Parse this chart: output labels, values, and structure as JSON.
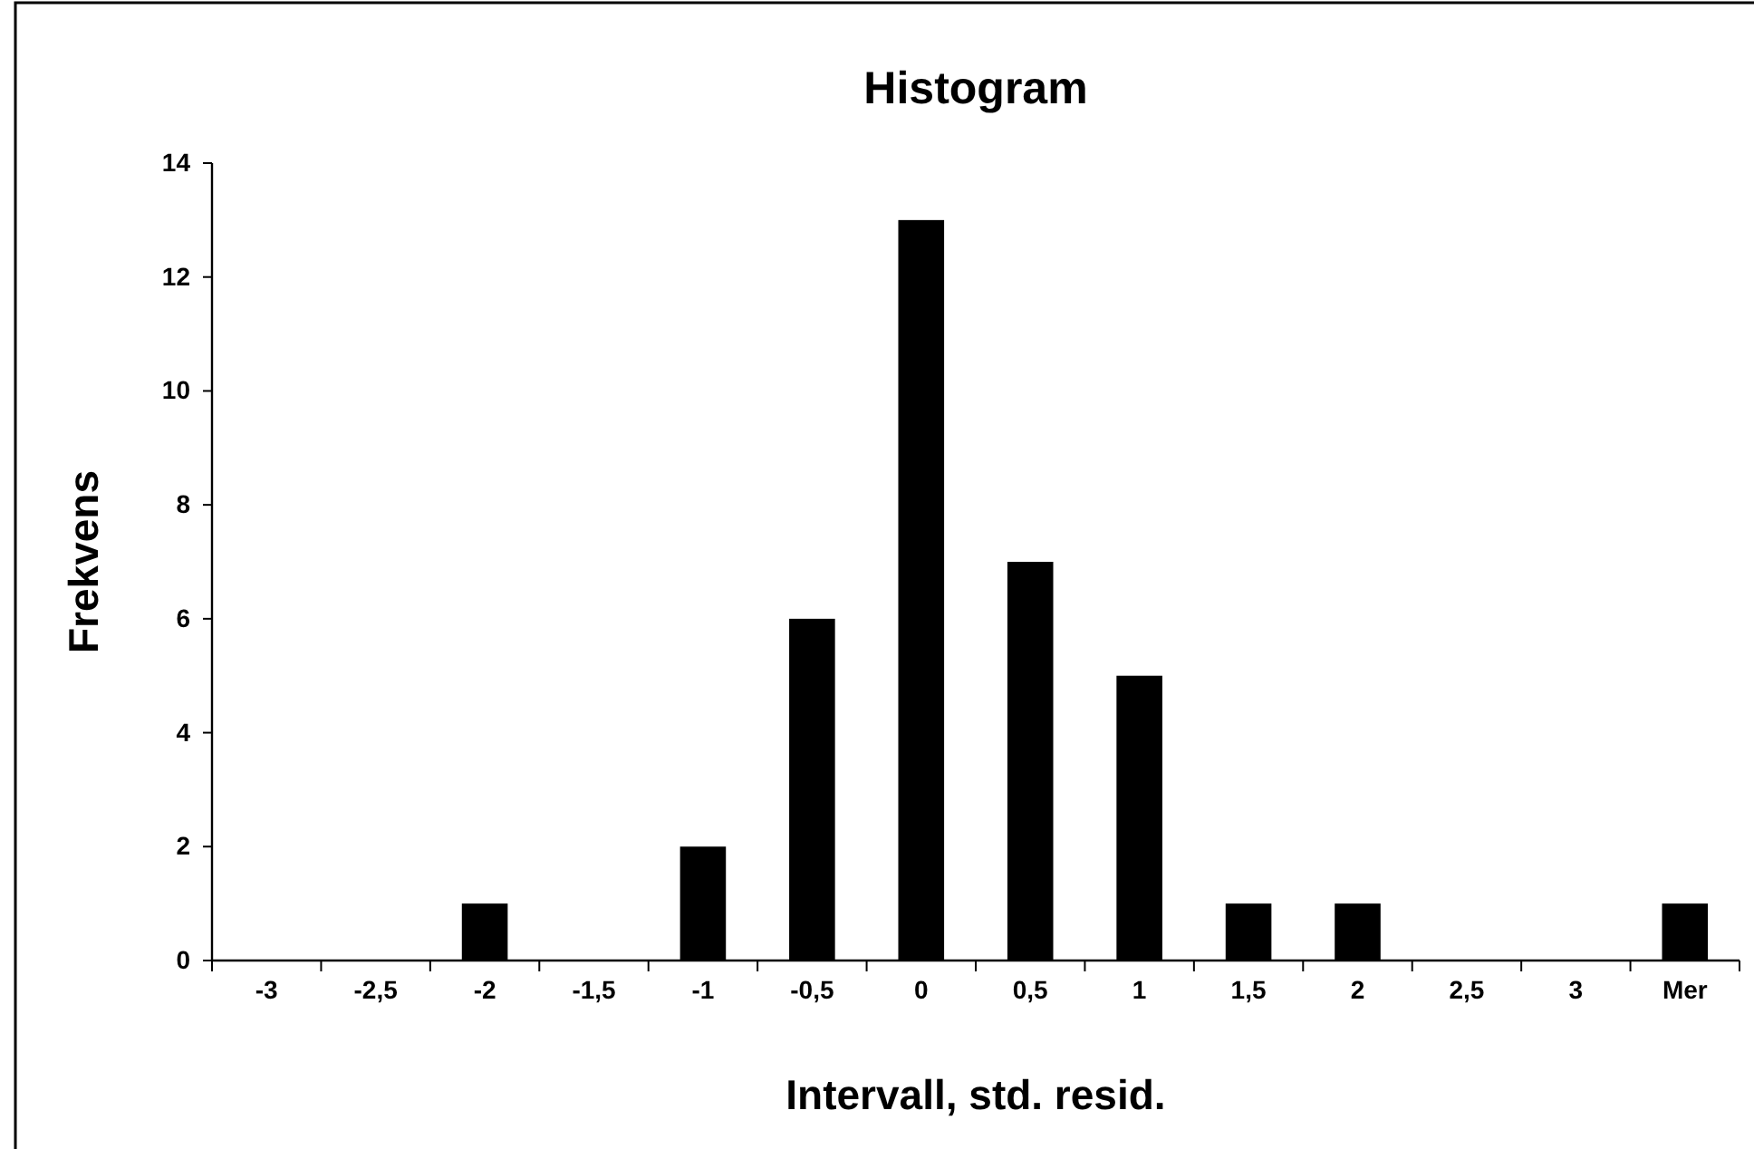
{
  "chart_data": {
    "type": "bar",
    "title": "Histogram",
    "xlabel": "Intervall, std. resid.",
    "ylabel": "Frekvens",
    "categories": [
      "-3",
      "-2,5",
      "-2",
      "-1,5",
      "-1",
      "-0,5",
      "0",
      "0,5",
      "1",
      "1,5",
      "2",
      "2,5",
      "3",
      "Mer"
    ],
    "values": [
      0,
      0,
      1,
      0,
      2,
      6,
      13,
      7,
      5,
      1,
      1,
      0,
      0,
      1
    ],
    "color": "#000000",
    "ylim": [
      0,
      14
    ],
    "yticks": [
      0,
      2,
      4,
      6,
      8,
      10,
      12,
      14
    ],
    "grid": false
  }
}
